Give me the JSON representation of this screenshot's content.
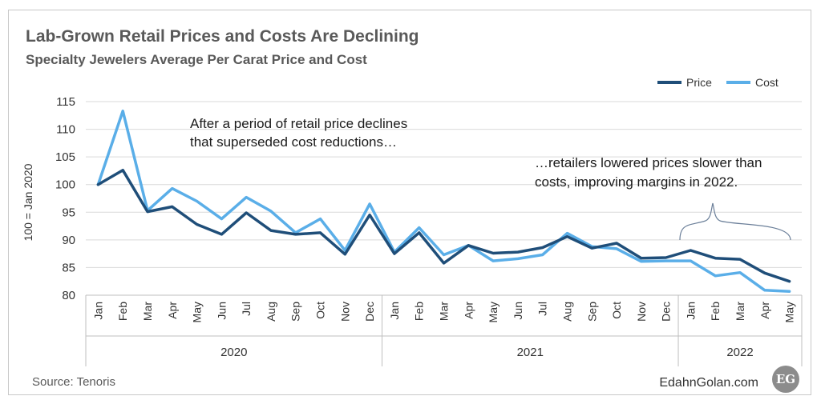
{
  "header": {
    "title": "Lab-Grown Retail Prices and Costs Are Declining",
    "subtitle": "Specialty Jewelers Average Per Carat Price and Cost"
  },
  "annotations": {
    "left_line1": "After a period of retail price declines",
    "left_line2": "that superseded cost reductions…",
    "right_line1": "…retailers lowered prices slower than",
    "right_line2": "costs, improving margins in 2022."
  },
  "footer": {
    "source": "Source: Tenoris",
    "brand": "EdahnGolan.com",
    "logo_text": "EG"
  },
  "colors": {
    "price": "#1f4e79",
    "cost": "#5aaee8",
    "grid": "#d9d9d9",
    "axis": "#bfbfbf"
  },
  "chart_data": {
    "type": "line",
    "ylabel": "100 = Jan 2020",
    "ylim": [
      80,
      115
    ],
    "yticks": [
      80,
      85,
      90,
      95,
      100,
      105,
      110,
      115
    ],
    "grid": "horizontal",
    "legend_position": "top-right",
    "categories": [
      "Jan",
      "Feb",
      "Mar",
      "Apr",
      "May",
      "Jun",
      "Jul",
      "Aug",
      "Sep",
      "Oct",
      "Nov",
      "Dec",
      "Jan",
      "Feb",
      "Mar",
      "Apr",
      "May",
      "Jun",
      "Jul",
      "Aug",
      "Sep",
      "Oct",
      "Nov",
      "Dec",
      "Jan",
      "Feb",
      "Mar",
      "Apr",
      "May"
    ],
    "year_groups": [
      {
        "label": "2020",
        "count": 12
      },
      {
        "label": "2021",
        "count": 12
      },
      {
        "label": "2022",
        "count": 5
      }
    ],
    "series": [
      {
        "name": "Price",
        "values": [
          100,
          102.6,
          95.1,
          96.0,
          92.8,
          91.0,
          94.9,
          91.7,
          91.0,
          91.3,
          87.4,
          94.5,
          87.5,
          91.3,
          85.8,
          89.0,
          87.6,
          87.8,
          88.6,
          90.6,
          88.5,
          89.4,
          86.7,
          86.8,
          88.1,
          86.7,
          86.5,
          84.0,
          82.5
        ]
      },
      {
        "name": "Cost",
        "values": [
          100,
          113.3,
          95.3,
          99.3,
          97.0,
          93.8,
          97.7,
          95.2,
          91.3,
          93.8,
          88.1,
          96.5,
          87.8,
          92.2,
          87.3,
          89.0,
          86.2,
          86.6,
          87.3,
          91.2,
          88.8,
          88.4,
          86.1,
          86.2,
          86.2,
          83.5,
          84.1,
          80.9,
          80.7
        ]
      }
    ]
  }
}
